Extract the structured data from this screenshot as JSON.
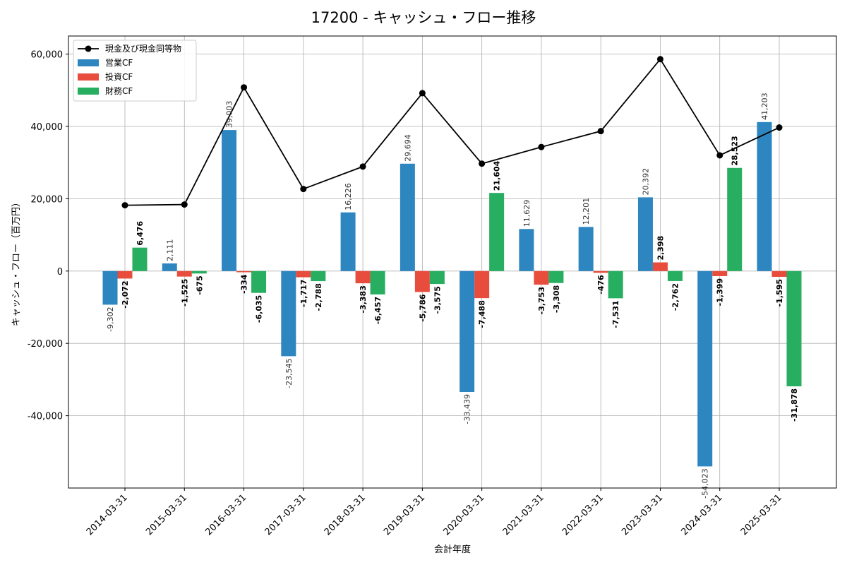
{
  "chart_data": {
    "type": "bar",
    "title": "17200 - キャッシュ・フロー推移",
    "xlabel": "会計年度",
    "ylabel": "キャッシュ・フロー（百万円）",
    "ylim": [
      -60000,
      65000
    ],
    "yticks": [
      -40000,
      -20000,
      0,
      20000,
      40000,
      60000
    ],
    "ytick_labels": [
      "-40,000",
      "-20,000",
      "0",
      "20,000",
      "40,000",
      "60,000"
    ],
    "grid": true,
    "legend_position": "top-left",
    "categories": [
      "2014-03-31",
      "2015-03-31",
      "2016-03-31",
      "2017-03-31",
      "2018-03-31",
      "2019-03-31",
      "2020-03-31",
      "2021-03-31",
      "2022-03-31",
      "2023-03-31",
      "2024-03-31",
      "2025-03-31"
    ],
    "series": [
      {
        "name": "営業CF",
        "kind": "bar",
        "color": "#2E86C1",
        "values": [
          -9302,
          2111,
          39003,
          -23545,
          16226,
          29694,
          -33439,
          11629,
          12201,
          20392,
          -54023,
          41203
        ],
        "labels": [
          "-9,302",
          "2,111",
          "39,003",
          "-23,545",
          "16,226",
          "29,694",
          "-33,439",
          "11,629",
          "12,201",
          "20,392",
          "-54,023",
          "41,203"
        ]
      },
      {
        "name": "投資CF",
        "kind": "bar",
        "color": "#E74C3C",
        "values": [
          -2072,
          -1525,
          -334,
          -1717,
          -3383,
          -5786,
          -7488,
          -3753,
          -476,
          2398,
          -1399,
          -1595
        ],
        "labels": [
          "-2,072",
          "-1,525",
          "-334",
          "-1,717",
          "-3,383",
          "-5,786",
          "-7,488",
          "-3,753",
          "-476",
          "2,398",
          "-1,399",
          "-1,595"
        ]
      },
      {
        "name": "財務CF",
        "kind": "bar",
        "color": "#27AE60",
        "values": [
          6476,
          -675,
          -6035,
          -2788,
          -6457,
          -3575,
          21604,
          -3308,
          -7531,
          -2762,
          28523,
          -31878
        ],
        "labels": [
          "6,476",
          "-675",
          "-6,035",
          "-2,788",
          "-6,457",
          "-3,575",
          "21,604",
          "-3,308",
          "-7,531",
          "-2,762",
          "28,523",
          "-31,878"
        ]
      },
      {
        "name": "現金及び現金同等物",
        "kind": "line",
        "color": "#000000",
        "values": [
          18200,
          18400,
          50800,
          22700,
          28900,
          49200,
          29700,
          34300,
          38700,
          58600,
          32000,
          39700
        ]
      }
    ]
  }
}
